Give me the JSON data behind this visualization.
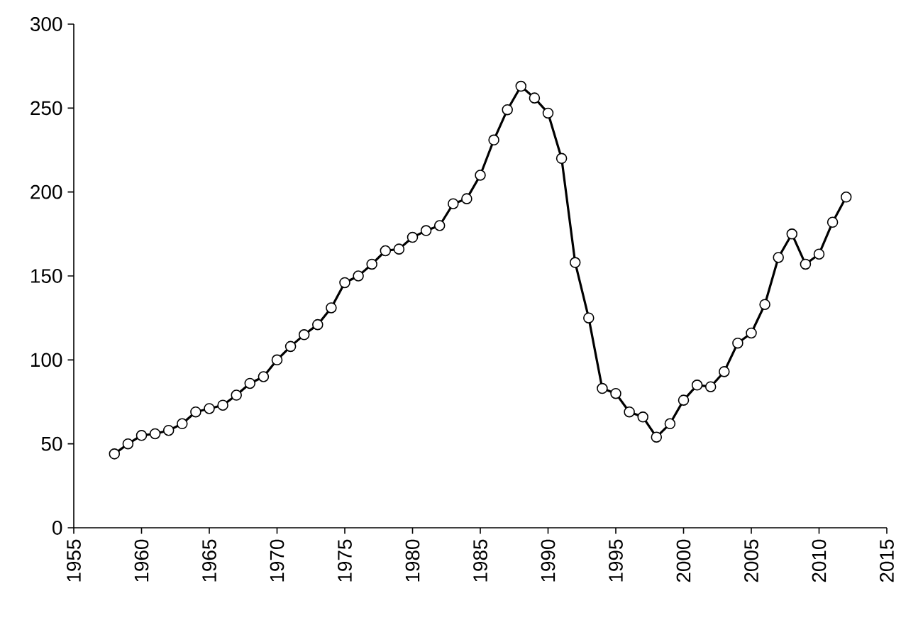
{
  "chart_data": {
    "type": "line",
    "x": [
      1958,
      1959,
      1960,
      1961,
      1962,
      1963,
      1964,
      1965,
      1966,
      1967,
      1968,
      1969,
      1970,
      1971,
      1972,
      1973,
      1974,
      1975,
      1976,
      1977,
      1978,
      1979,
      1980,
      1981,
      1982,
      1983,
      1984,
      1985,
      1986,
      1987,
      1988,
      1989,
      1990,
      1991,
      1992,
      1993,
      1994,
      1995,
      1996,
      1997,
      1998,
      1999,
      2000,
      2001,
      2002,
      2003,
      2004,
      2005,
      2006,
      2007,
      2008,
      2009,
      2010,
      2011,
      2012
    ],
    "values": [
      44,
      50,
      55,
      56,
      58,
      62,
      69,
      71,
      73,
      79,
      86,
      90,
      100,
      108,
      115,
      121,
      131,
      146,
      150,
      157,
      165,
      166,
      173,
      177,
      180,
      193,
      196,
      210,
      231,
      249,
      263,
      256,
      247,
      220,
      158,
      125,
      83,
      80,
      69,
      66,
      54,
      62,
      76,
      85,
      84,
      93,
      110,
      116,
      133,
      161,
      175,
      157,
      163,
      182,
      197
    ],
    "color": "#000000",
    "marker": "circle",
    "line_style": "solid",
    "xlim": [
      1955,
      2015
    ],
    "xticks": [
      1955,
      1960,
      1965,
      1970,
      1975,
      1980,
      1985,
      1990,
      1995,
      2000,
      2005,
      2010,
      2015
    ],
    "ylim": [
      0,
      300
    ],
    "yticks": [
      0,
      50,
      100,
      150,
      200,
      250,
      300
    ]
  }
}
